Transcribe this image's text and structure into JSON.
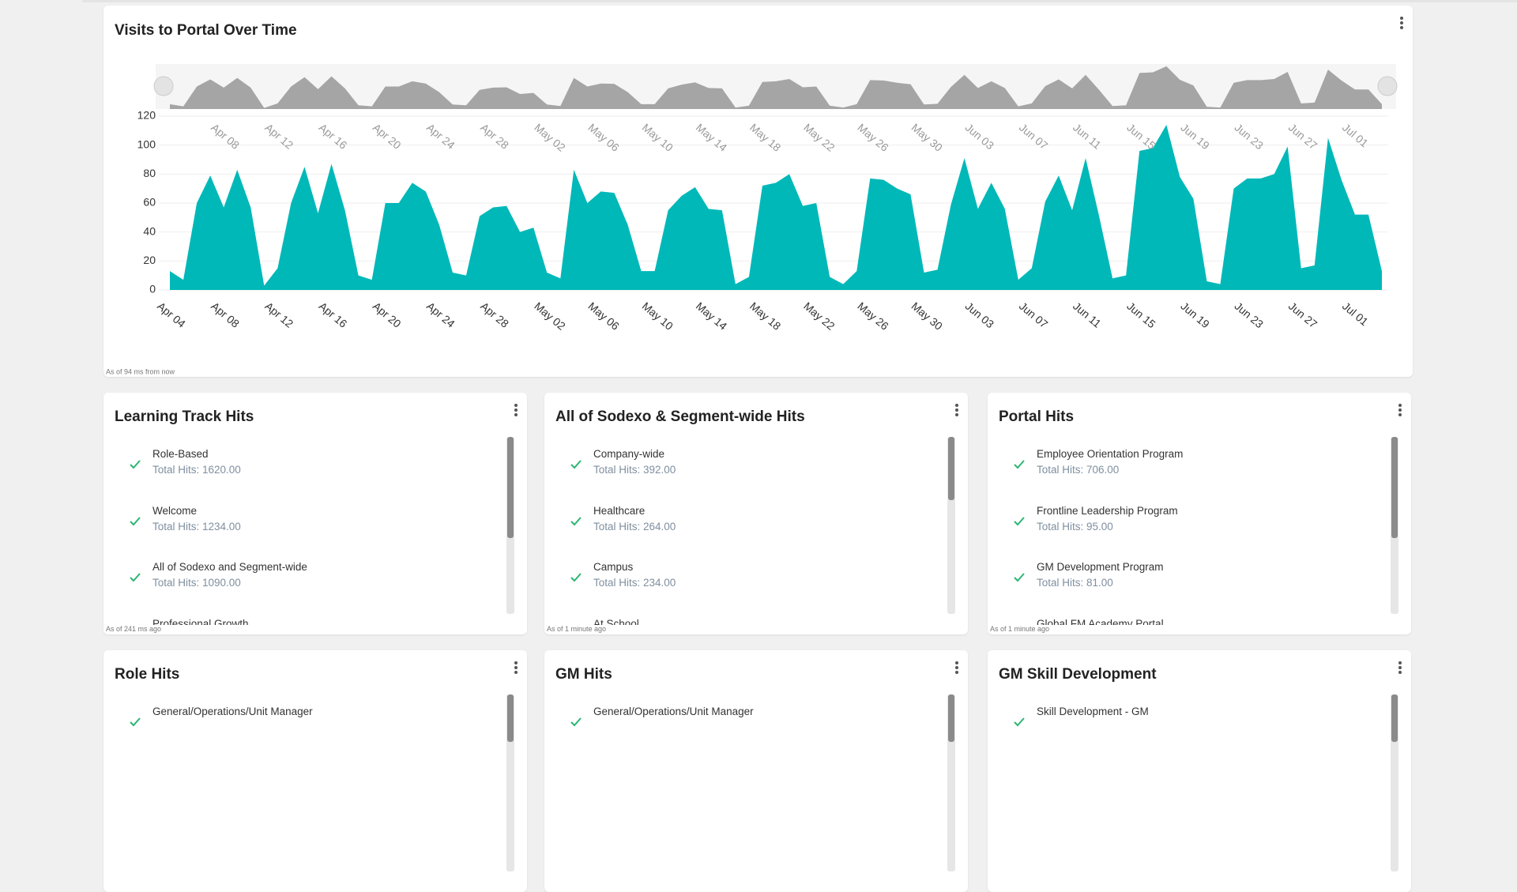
{
  "chart_data": {
    "type": "area",
    "title": "Visits to Portal Over Time",
    "footer": "As of 94 ms from now",
    "categories": [
      "Apr 04",
      null,
      null,
      null,
      "Apr 08",
      null,
      null,
      null,
      "Apr 12",
      null,
      null,
      null,
      "Apr 16",
      null,
      null,
      null,
      "Apr 20",
      null,
      null,
      null,
      "Apr 24",
      null,
      null,
      null,
      "Apr 28",
      null,
      null,
      null,
      "May 02",
      null,
      null,
      null,
      "May 06",
      null,
      null,
      null,
      "May 10",
      null,
      null,
      null,
      "May 14",
      null,
      null,
      null,
      "May 18",
      null,
      null,
      null,
      "May 22",
      null,
      null,
      null,
      "May 26",
      null,
      null,
      null,
      "May 30",
      null,
      null,
      null,
      "Jun 03",
      null,
      null,
      null,
      "Jun 07",
      null,
      null,
      null,
      "Jun 11",
      null,
      null,
      null,
      "Jun 15",
      null,
      null,
      null,
      "Jun 19",
      null,
      null,
      null,
      "Jun 23",
      null,
      null,
      null,
      "Jun 27",
      null,
      null,
      null,
      "Jul 01",
      null,
      null
    ],
    "values": [
      13,
      7,
      60,
      79,
      57,
      83,
      57,
      3,
      15,
      60,
      85,
      53,
      87,
      55,
      10,
      7,
      60,
      60,
      74,
      68,
      45,
      12,
      10,
      51,
      57,
      58,
      40,
      43,
      12,
      8,
      83,
      60,
      68,
      67,
      45,
      13,
      13,
      55,
      65,
      71,
      56,
      55,
      4,
      9,
      72,
      74,
      80,
      58,
      60,
      9,
      4,
      13,
      77,
      76,
      70,
      66,
      12,
      14,
      59,
      91,
      56,
      74,
      56,
      7,
      15,
      61,
      79,
      55,
      91,
      51,
      8,
      10,
      96,
      98,
      114,
      78,
      63,
      6,
      4,
      70,
      77,
      77,
      80,
      99,
      15,
      17,
      105,
      76,
      52,
      52,
      13
    ],
    "color": "#00b8b8",
    "navigator_color": "#a5a5a5",
    "ylim": [
      0,
      120
    ],
    "yticks": [
      0,
      20,
      40,
      60,
      80,
      100,
      120
    ],
    "grid": true
  },
  "panels": [
    {
      "title": "Learning Track Hits",
      "footer": "As of 241 ms ago",
      "items": [
        {
          "name": "Role-Based",
          "total": "Total Hits: 1620.00"
        },
        {
          "name": "Welcome",
          "total": "Total Hits: 1234.00"
        },
        {
          "name": "All of Sodexo and Segment-wide",
          "total": "Total Hits: 1090.00"
        },
        {
          "name": "Professional Growth"
        }
      ]
    },
    {
      "title": "All of Sodexo & Segment-wide Hits",
      "footer": "As of 1 minute ago",
      "items": [
        {
          "name": "Company-wide",
          "total": "Total Hits: 392.00"
        },
        {
          "name": "Healthcare",
          "total": "Total Hits: 264.00"
        },
        {
          "name": "Campus",
          "total": "Total Hits: 234.00"
        },
        {
          "name": "At School"
        }
      ]
    },
    {
      "title": "Portal Hits",
      "footer": "As of 1 minute ago",
      "items": [
        {
          "name": "Employee Orientation Program",
          "total": "Total Hits: 706.00"
        },
        {
          "name": "Frontline Leadership Program",
          "total": "Total Hits: 95.00"
        },
        {
          "name": "GM Development Program",
          "total": "Total Hits: 81.00"
        },
        {
          "name": "Global FM Academy Portal"
        }
      ]
    },
    {
      "title": "Role Hits",
      "items": [
        {
          "name": "General/Operations/Unit Manager"
        }
      ]
    },
    {
      "title": "GM Hits",
      "items": [
        {
          "name": "General/Operations/Unit Manager"
        }
      ]
    },
    {
      "title": "GM Skill Development",
      "items": [
        {
          "name": "Skill Development - GM"
        }
      ]
    }
  ]
}
